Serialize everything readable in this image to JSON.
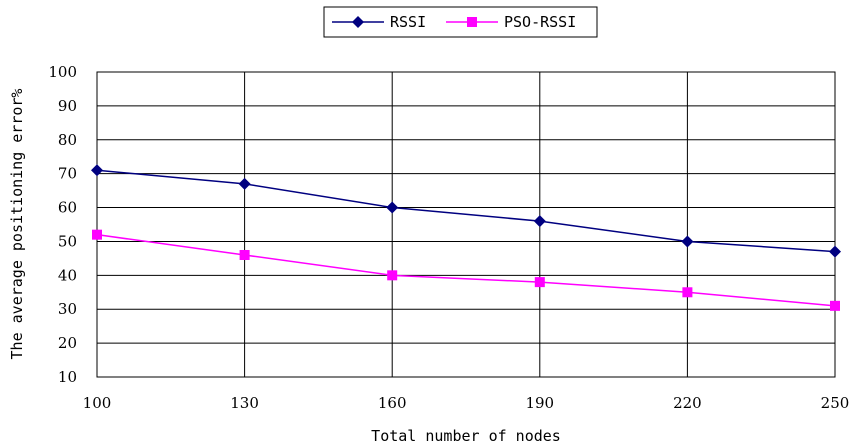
{
  "chart_data": {
    "type": "line",
    "title": "",
    "xlabel": "Total number of nodes",
    "ylabel": "The average positioning error%",
    "x": [
      100,
      130,
      160,
      190,
      220,
      250
    ],
    "ylim": [
      10,
      100
    ],
    "yticks": [
      10,
      20,
      30,
      40,
      50,
      60,
      70,
      80,
      90,
      100
    ],
    "grid": true,
    "legend_position": "top-center",
    "series": [
      {
        "name": "RSSI",
        "values": [
          71,
          67,
          60,
          56,
          50,
          47
        ],
        "color": "#000080",
        "marker": "diamond"
      },
      {
        "name": "PSO-RSSI",
        "values": [
          52,
          46,
          40,
          38,
          35,
          31
        ],
        "color": "#ff00ff",
        "marker": "square"
      }
    ]
  }
}
